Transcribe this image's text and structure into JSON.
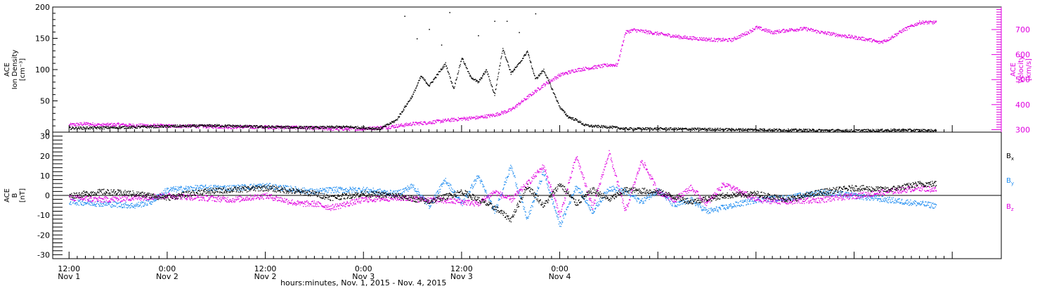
{
  "chart_data": [
    {
      "type": "scatter",
      "panel": "top",
      "left_axis": {
        "label_lines": [
          "ACE",
          "Ion Density",
          "[cm⁻³]"
        ],
        "ticks": [
          0,
          50,
          100,
          150,
          200
        ],
        "ylim": [
          0,
          200
        ]
      },
      "right_axis": {
        "label_lines": [
          "ACE",
          "Velocity",
          "[km/s]"
        ],
        "ticks": [
          300,
          400,
          500,
          600,
          700
        ],
        "ylim": [
          290,
          790
        ]
      },
      "series": [
        {
          "name": "",
          "axis": "left",
          "color": "#000000",
          "points": [
            [
              0,
              7
            ],
            [
              6,
              8
            ],
            [
              12,
              10
            ],
            [
              18,
              11
            ],
            [
              24,
              9
            ],
            [
              30,
              8
            ],
            [
              34,
              9
            ],
            [
              38,
              6
            ],
            [
              40,
              20
            ],
            [
              42,
              60
            ],
            [
              43,
              90
            ],
            [
              44,
              75
            ],
            [
              46,
              110
            ],
            [
              47,
              70
            ],
            [
              48,
              120
            ],
            [
              49,
              90
            ],
            [
              50,
              80
            ],
            [
              51,
              100
            ],
            [
              52,
              60
            ],
            [
              53,
              135
            ],
            [
              54,
              95
            ],
            [
              55,
              110
            ],
            [
              56,
              130
            ],
            [
              57,
              85
            ],
            [
              58,
              100
            ],
            [
              59,
              70
            ],
            [
              60,
              40
            ],
            [
              61,
              25
            ],
            [
              62,
              20
            ],
            [
              63,
              12
            ],
            [
              64,
              10
            ],
            [
              66,
              9
            ],
            [
              68,
              6
            ],
            [
              72,
              6
            ],
            [
              80,
              5
            ],
            [
              88,
              4
            ],
            [
              96,
              3
            ],
            [
              102,
              4
            ],
            [
              106,
              3
            ]
          ],
          "scatter_points": [
            [
              41,
              186
            ],
            [
              42.5,
              150
            ],
            [
              44,
              165
            ],
            [
              45.5,
              140
            ],
            [
              46.5,
              192
            ],
            [
              50,
              155
            ],
            [
              52,
              178
            ],
            [
              53.5,
              178
            ],
            [
              57,
              190
            ],
            [
              55,
              160
            ]
          ]
        },
        {
          "name": "",
          "axis": "right",
          "color": "#e000e0",
          "points": [
            [
              0,
              320
            ],
            [
              2,
              325
            ],
            [
              4,
              320
            ],
            [
              6,
              322
            ],
            [
              8,
              318
            ],
            [
              10,
              318
            ],
            [
              12,
              316
            ],
            [
              16,
              315
            ],
            [
              20,
              312
            ],
            [
              24,
              312
            ],
            [
              28,
              310
            ],
            [
              32,
              305
            ],
            [
              34,
              305
            ],
            [
              36,
              305
            ],
            [
              38,
              310
            ],
            [
              39,
              312
            ],
            [
              40,
              316
            ],
            [
              41,
              320
            ],
            [
              42,
              325
            ],
            [
              44,
              330
            ],
            [
              46,
              338
            ],
            [
              48,
              345
            ],
            [
              50,
              350
            ],
            [
              52,
              360
            ],
            [
              54,
              380
            ],
            [
              56,
              430
            ],
            [
              58,
              480
            ],
            [
              60,
              520
            ],
            [
              62,
              540
            ],
            [
              64,
              550
            ],
            [
              66,
              560
            ],
            [
              67,
              560
            ],
            [
              68,
              690
            ],
            [
              69,
              700
            ],
            [
              71,
              690
            ],
            [
              73,
              680
            ],
            [
              75,
              670
            ],
            [
              77,
              665
            ],
            [
              79,
              660
            ],
            [
              81,
              660
            ],
            [
              83,
              690
            ],
            [
              84,
              710
            ],
            [
              85,
              700
            ],
            [
              86,
              690
            ],
            [
              88,
              700
            ],
            [
              90,
              705
            ],
            [
              92,
              690
            ],
            [
              94,
              680
            ],
            [
              96,
              670
            ],
            [
              98,
              660
            ],
            [
              99,
              650
            ],
            [
              100,
              660
            ],
            [
              102,
              700
            ],
            [
              104,
              730
            ],
            [
              106,
              730
            ]
          ]
        }
      ]
    },
    {
      "type": "scatter",
      "panel": "bottom",
      "left_axis": {
        "label_lines": [
          "ACE",
          "B",
          "[nT]"
        ],
        "ticks": [
          -30,
          -20,
          -10,
          0,
          10,
          20,
          30
        ],
        "ylim": [
          -32,
          32
        ]
      },
      "legend": [
        "Bx",
        "By",
        "Bz"
      ],
      "series": [
        {
          "name": "Bx",
          "color": "#000000",
          "points": [
            [
              0,
              0
            ],
            [
              4,
              2
            ],
            [
              8,
              1
            ],
            [
              12,
              -1
            ],
            [
              16,
              2
            ],
            [
              20,
              3
            ],
            [
              24,
              4
            ],
            [
              28,
              2
            ],
            [
              30,
              1
            ],
            [
              32,
              -1
            ],
            [
              36,
              1
            ],
            [
              40,
              0
            ],
            [
              44,
              -3
            ],
            [
              48,
              2
            ],
            [
              52,
              -6
            ],
            [
              54,
              -12
            ],
            [
              56,
              5
            ],
            [
              58,
              -5
            ],
            [
              60,
              6
            ],
            [
              62,
              -4
            ],
            [
              64,
              3
            ],
            [
              66,
              -2
            ],
            [
              68,
              3
            ],
            [
              72,
              2
            ],
            [
              76,
              -3
            ],
            [
              80,
              0
            ],
            [
              84,
              1
            ],
            [
              88,
              -2
            ],
            [
              92,
              2
            ],
            [
              96,
              4
            ],
            [
              100,
              3
            ],
            [
              104,
              6
            ],
            [
              106,
              6
            ]
          ]
        },
        {
          "name": "By",
          "color": "#1e8cf0",
          "points": [
            [
              0,
              -3
            ],
            [
              4,
              -4
            ],
            [
              8,
              -5
            ],
            [
              10,
              -3
            ],
            [
              12,
              3
            ],
            [
              16,
              4
            ],
            [
              20,
              4
            ],
            [
              24,
              5
            ],
            [
              28,
              3
            ],
            [
              30,
              2
            ],
            [
              32,
              3
            ],
            [
              36,
              3
            ],
            [
              40,
              1
            ],
            [
              42,
              5
            ],
            [
              44,
              -5
            ],
            [
              46,
              8
            ],
            [
              48,
              -4
            ],
            [
              50,
              10
            ],
            [
              52,
              -8
            ],
            [
              54,
              15
            ],
            [
              56,
              -12
            ],
            [
              58,
              12
            ],
            [
              60,
              -15
            ],
            [
              62,
              5
            ],
            [
              64,
              -8
            ],
            [
              66,
              4
            ],
            [
              68,
              2
            ],
            [
              70,
              -3
            ],
            [
              72,
              3
            ],
            [
              74,
              -5
            ],
            [
              76,
              -2
            ],
            [
              78,
              -8
            ],
            [
              80,
              -6
            ],
            [
              84,
              -2
            ],
            [
              88,
              -1
            ],
            [
              92,
              2
            ],
            [
              96,
              0
            ],
            [
              100,
              -2
            ],
            [
              104,
              -4
            ],
            [
              106,
              -5
            ]
          ]
        },
        {
          "name": "Bz",
          "color": "#e000e0",
          "points": [
            [
              0,
              -1
            ],
            [
              4,
              -2
            ],
            [
              8,
              -1
            ],
            [
              12,
              0
            ],
            [
              16,
              -1
            ],
            [
              20,
              -2
            ],
            [
              24,
              0
            ],
            [
              28,
              -4
            ],
            [
              30,
              -4
            ],
            [
              32,
              -6
            ],
            [
              36,
              -2
            ],
            [
              40,
              -1
            ],
            [
              44,
              -2
            ],
            [
              48,
              -3
            ],
            [
              50,
              -4
            ],
            [
              52,
              2
            ],
            [
              54,
              -2
            ],
            [
              56,
              6
            ],
            [
              58,
              15
            ],
            [
              60,
              -10
            ],
            [
              62,
              20
            ],
            [
              64,
              -6
            ],
            [
              66,
              22
            ],
            [
              68,
              -8
            ],
            [
              70,
              18
            ],
            [
              72,
              2
            ],
            [
              74,
              -2
            ],
            [
              76,
              4
            ],
            [
              78,
              -4
            ],
            [
              80,
              6
            ],
            [
              82,
              2
            ],
            [
              84,
              -2
            ],
            [
              88,
              -3
            ],
            [
              92,
              -2
            ],
            [
              96,
              0
            ],
            [
              100,
              2
            ],
            [
              104,
              4
            ],
            [
              106,
              3
            ]
          ]
        }
      ]
    }
  ],
  "x_axis": {
    "hours_per_major_tick": 12,
    "xlim_hours": [
      -2,
      114
    ],
    "tick_labels": [
      {
        "time": "12:00",
        "date": "Nov 1",
        "hours": 0
      },
      {
        "time": "0:00",
        "date": "Nov 2",
        "hours": 12
      },
      {
        "time": "12:00",
        "date": "Nov 2",
        "hours": 24
      },
      {
        "time": "0:00",
        "date": "Nov 3",
        "hours": 36
      },
      {
        "time": "12:00",
        "date": "Nov 3",
        "hours": 48
      },
      {
        "time": "0:00",
        "date": "Nov 4",
        "hours": 60
      }
    ],
    "title": "hours:minutes, Nov.  1, 2015 - Nov.  4, 2015"
  }
}
